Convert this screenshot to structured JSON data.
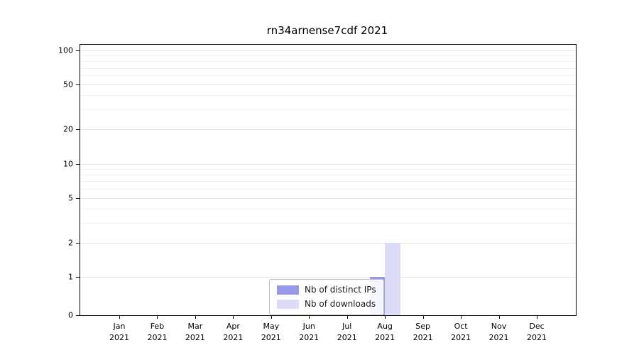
{
  "chart_data": {
    "type": "bar",
    "title": "rn34arnense7cdf 2021",
    "categories": [
      "Jan 2021",
      "Feb 2021",
      "Mar 2021",
      "Apr 2021",
      "May 2021",
      "Jun 2021",
      "Jul 2021",
      "Aug 2021",
      "Sep 2021",
      "Oct 2021",
      "Nov 2021",
      "Dec 2021"
    ],
    "series": [
      {
        "name": "Nb of distinct IPs",
        "color": "#9999e9",
        "values": [
          0,
          0,
          0,
          0,
          0,
          0,
          0,
          1,
          0,
          0,
          0,
          0
        ]
      },
      {
        "name": "Nb of downloads",
        "color": "#dcdcf8",
        "values": [
          0,
          0,
          0,
          0,
          0,
          0,
          0,
          2,
          0,
          0,
          0,
          0
        ]
      }
    ],
    "xlabel": "",
    "ylabel": "",
    "yscale": "symlog",
    "y_ticks": [
      0,
      1,
      2,
      5,
      10,
      20,
      50,
      100
    ],
    "ylim": [
      0,
      112
    ],
    "grid": "horizontal",
    "legend_position": "lower-center-inside"
  },
  "legend": {
    "items": [
      {
        "label": "Nb of distinct IPs",
        "color": "#9999e9"
      },
      {
        "label": "Nb of downloads",
        "color": "#dcdcf8"
      }
    ]
  }
}
